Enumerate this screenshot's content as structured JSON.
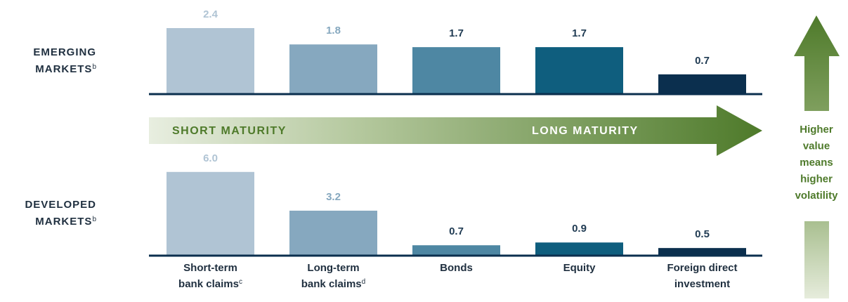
{
  "chart_data": [
    {
      "type": "bar",
      "title_lines": [
        "EMERGING",
        "MARKETS"
      ],
      "title_note": "b",
      "values": [
        2.4,
        1.8,
        1.7,
        1.7,
        0.7
      ],
      "value_labels": [
        "2.4",
        "1.8",
        "1.7",
        "1.7",
        "0.7"
      ],
      "colors": [
        "#b0c4d4",
        "#86a8bf",
        "#4e87a3",
        "#0f5e7e",
        "#0b2f4e"
      ],
      "label_colors": [
        "#b0c4d4",
        "#86a8bf",
        "#1f3a52",
        "#1f3a52",
        "#1f3a52"
      ]
    },
    {
      "type": "bar",
      "title_lines": [
        "DEVELOPED",
        "MARKETS"
      ],
      "title_note": "b",
      "categories": [
        [
          "Short-term",
          "bank claims"
        ],
        [
          "Long-term",
          "bank claims"
        ],
        [
          "Bonds"
        ],
        [
          "Equity"
        ],
        [
          "Foreign direct",
          "investment"
        ]
      ],
      "category_notes": [
        "c",
        "d",
        null,
        null,
        null
      ],
      "values": [
        6.0,
        3.2,
        0.7,
        0.9,
        0.5
      ],
      "value_labels": [
        "6.0",
        "3.2",
        "0.7",
        "0.9",
        "0.5"
      ],
      "colors": [
        "#b0c4d4",
        "#86a8bf",
        "#4e87a3",
        "#0f5e7e",
        "#0b2f4e"
      ],
      "label_colors": [
        "#b0c4d4",
        "#86a8bf",
        "#1f3a52",
        "#1f3a52",
        "#1f3a52"
      ]
    }
  ],
  "annotations": {
    "short_maturity": "SHORT MATURITY",
    "long_maturity": "LONG MATURITY",
    "volatility_note": [
      "Higher",
      "value",
      "means",
      "higher",
      "volatility"
    ]
  }
}
